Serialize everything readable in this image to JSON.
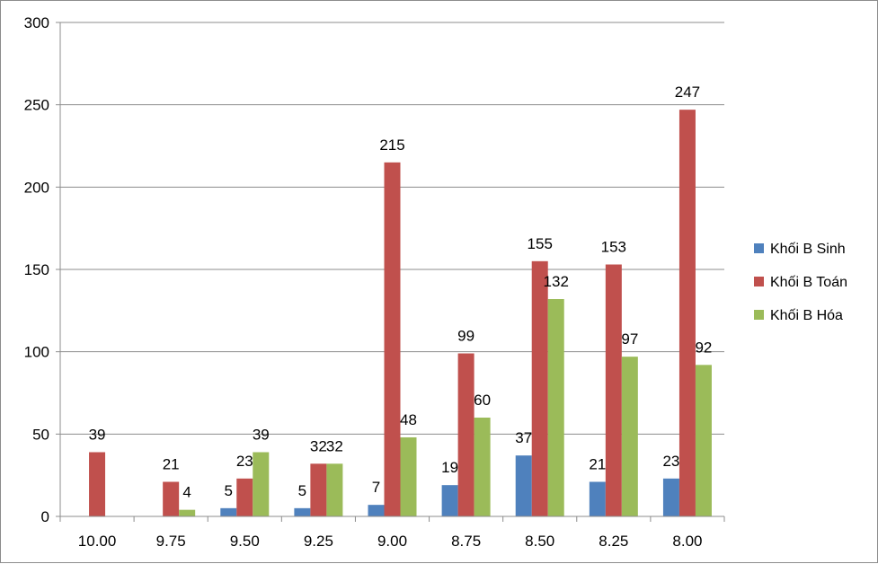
{
  "chart_data": {
    "type": "bar",
    "categories": [
      "10.00",
      "9.75",
      "9.50",
      "9.25",
      "9.00",
      "8.75",
      "8.50",
      "8.25",
      "8.00"
    ],
    "series": [
      {
        "name": "Khối B Sinh",
        "color": "#4f81bd",
        "values": [
          null,
          null,
          5,
          5,
          7,
          19,
          37,
          21,
          23
        ]
      },
      {
        "name": "Khối B Toán",
        "color": "#c0504d",
        "values": [
          39,
          21,
          23,
          32,
          215,
          99,
          155,
          153,
          247
        ]
      },
      {
        "name": "Khối B Hóa",
        "color": "#9bbb59",
        "values": [
          null,
          4,
          39,
          32,
          48,
          60,
          132,
          97,
          92
        ]
      }
    ],
    "ylim": [
      0,
      300
    ],
    "yticks": [
      "0",
      "50",
      "100",
      "150",
      "200",
      "250",
      "300"
    ],
    "grid": true,
    "legend_position": "right"
  }
}
